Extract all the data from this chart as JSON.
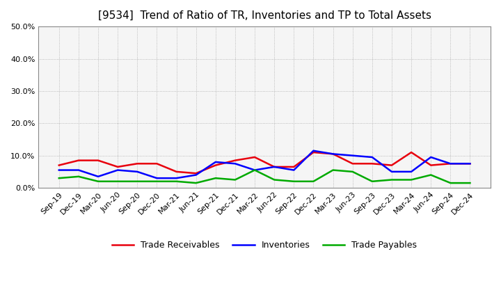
{
  "title": "[9534]  Trend of Ratio of TR, Inventories and TP to Total Assets",
  "labels": [
    "Sep-19",
    "Dec-19",
    "Mar-20",
    "Jun-20",
    "Sep-20",
    "Dec-20",
    "Mar-21",
    "Jun-21",
    "Sep-21",
    "Dec-21",
    "Mar-22",
    "Jun-22",
    "Sep-22",
    "Dec-22",
    "Mar-23",
    "Jun-23",
    "Sep-23",
    "Dec-23",
    "Mar-24",
    "Jun-24",
    "Sep-24",
    "Dec-24"
  ],
  "trade_receivables": [
    7.0,
    8.5,
    8.5,
    6.5,
    7.5,
    7.5,
    5.0,
    4.5,
    7.0,
    8.5,
    9.5,
    6.5,
    6.5,
    11.0,
    10.5,
    7.5,
    7.5,
    7.0,
    11.0,
    7.0,
    7.5,
    7.5
  ],
  "inventories": [
    5.5,
    5.5,
    3.5,
    5.5,
    5.0,
    3.0,
    3.0,
    4.0,
    8.0,
    7.5,
    5.5,
    6.5,
    5.5,
    11.5,
    10.5,
    10.0,
    9.5,
    5.0,
    5.0,
    9.5,
    7.5,
    7.5
  ],
  "trade_payables": [
    3.0,
    3.5,
    2.0,
    2.0,
    2.0,
    2.0,
    2.0,
    1.5,
    3.0,
    2.5,
    5.5,
    2.5,
    2.0,
    2.0,
    5.5,
    5.0,
    2.0,
    2.5,
    2.5,
    4.0,
    1.5,
    1.5
  ],
  "tr_color": "#e8000d",
  "inv_color": "#0000ff",
  "tp_color": "#00aa00",
  "ylim": [
    0,
    50
  ],
  "yticks": [
    0,
    10,
    20,
    30,
    40,
    50
  ],
  "ytick_labels": [
    "0.0%",
    "10.0%",
    "20.0%",
    "30.0%",
    "40.0%",
    "50.0%"
  ],
  "legend_tr": "Trade Receivables",
  "legend_inv": "Inventories",
  "legend_tp": "Trade Payables",
  "bg_color": "#ffffff",
  "plot_bg_color": "#f5f5f5",
  "title_fontsize": 11,
  "axis_fontsize": 8,
  "legend_fontsize": 9,
  "linewidth": 1.8,
  "grid_color": "#aaaaaa",
  "grid_linestyle": ":",
  "grid_linewidth": 0.6
}
